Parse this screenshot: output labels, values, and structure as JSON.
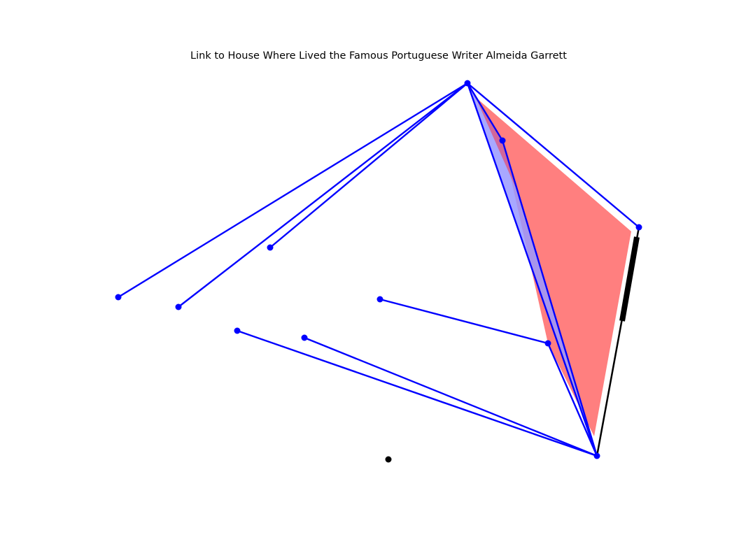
{
  "title": "Link to House Where Lived the Famous Portuguese Writer Almeida Garrett",
  "colors": {
    "background": "#ffffff",
    "edge": "#0000ff",
    "node": "#0000ff",
    "highlight_fill": "#ff7f7f",
    "highlight_overlap": "#d85c8a",
    "black_edge": "#000000",
    "lavender": "#9999ff"
  }
}
